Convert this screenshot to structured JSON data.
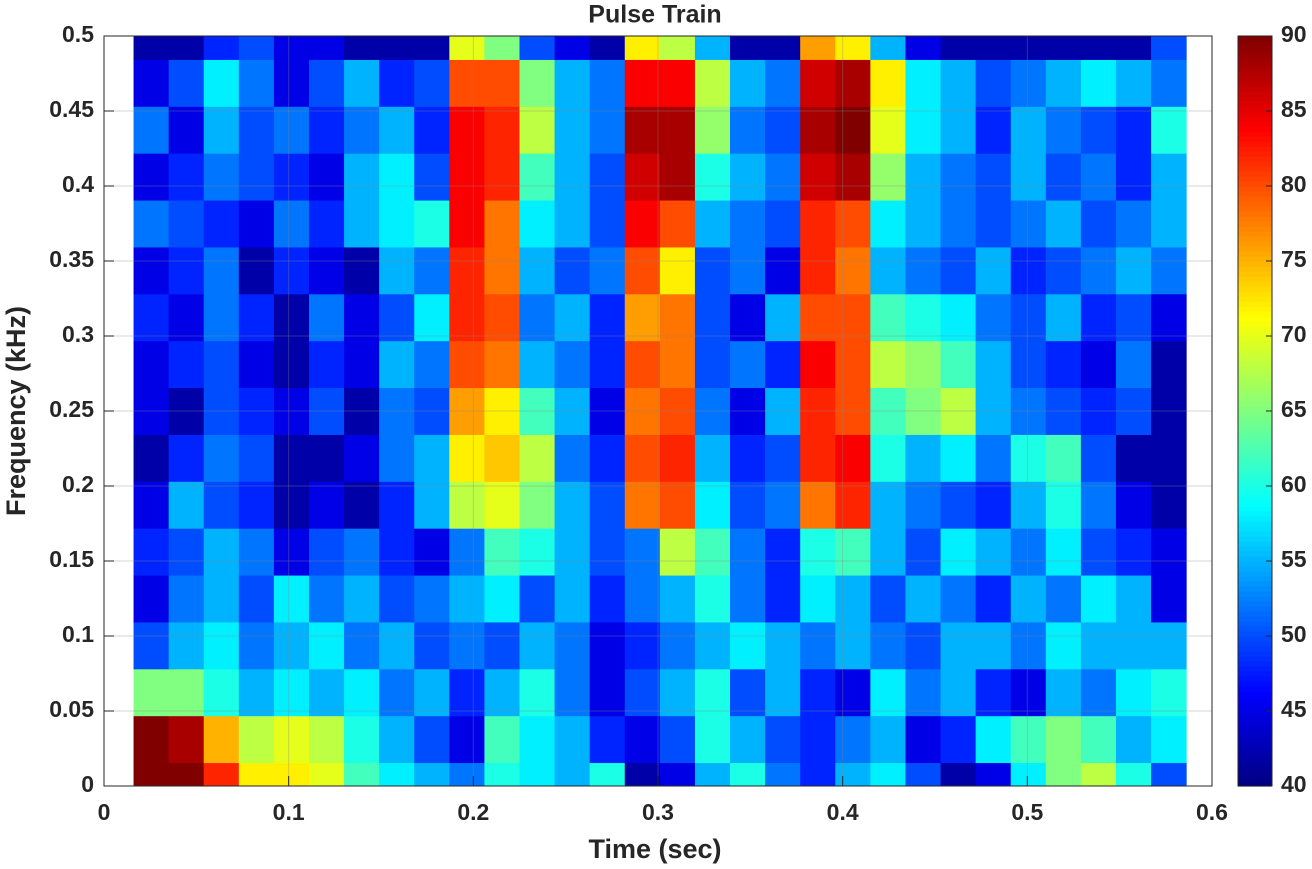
{
  "chart_data": {
    "type": "heatmap",
    "title": "Pulse Train",
    "x_label": "Time (sec)",
    "y_label": "Frequency (kHz)",
    "colormap": "jet",
    "clim": [
      40,
      90
    ],
    "cticks": [
      40,
      45,
      50,
      55,
      60,
      65,
      70,
      75,
      80,
      85,
      90
    ],
    "xlim": [
      0,
      0.6
    ],
    "xticks": [
      0,
      0.1,
      0.2,
      0.3,
      0.4,
      0.5,
      0.6
    ],
    "ylim": [
      0,
      0.5
    ],
    "yticks": [
      0,
      0.05,
      0.1,
      0.15,
      0.2,
      0.25,
      0.3,
      0.35,
      0.4,
      0.45,
      0.5
    ],
    "grid": true,
    "x": [
      0.0255,
      0.0445,
      0.0635,
      0.0825,
      0.1015,
      0.1205,
      0.1395,
      0.1585,
      0.1775,
      0.1965,
      0.2155,
      0.2345,
      0.2535,
      0.2725,
      0.2915,
      0.3105,
      0.3295,
      0.3485,
      0.3675,
      0.3865,
      0.4055,
      0.4245,
      0.4435,
      0.4625,
      0.4815,
      0.5005,
      0.5195,
      0.5385,
      0.5575,
      0.5765
    ],
    "y": [
      0,
      0.03125,
      0.0625,
      0.09375,
      0.125,
      0.15625,
      0.1875,
      0.21875,
      0.25,
      0.28125,
      0.3125,
      0.34375,
      0.375,
      0.40625,
      0.4375,
      0.46875,
      0.5
    ],
    "z": [
      [
        90,
        90,
        82,
        72,
        72,
        70,
        62,
        58,
        55,
        52,
        60,
        58,
        55,
        60,
        42,
        45,
        55,
        60,
        52,
        48,
        55,
        58,
        50,
        42,
        45,
        58,
        65,
        68,
        60,
        50
      ],
      [
        90,
        88,
        75,
        68,
        70,
        68,
        60,
        55,
        50,
        45,
        62,
        58,
        55,
        48,
        45,
        50,
        60,
        55,
        50,
        48,
        52,
        55,
        45,
        48,
        58,
        62,
        65,
        62,
        55,
        58
      ],
      [
        65,
        65,
        60,
        55,
        58,
        55,
        58,
        52,
        55,
        48,
        55,
        60,
        52,
        45,
        50,
        55,
        60,
        50,
        55,
        48,
        45,
        58,
        52,
        55,
        48,
        45,
        55,
        52,
        58,
        60
      ],
      [
        50,
        55,
        58,
        52,
        55,
        58,
        52,
        55,
        50,
        52,
        50,
        55,
        52,
        45,
        48,
        52,
        55,
        58,
        55,
        52,
        55,
        52,
        50,
        55,
        55,
        52,
        58,
        55,
        55,
        55
      ],
      [
        45,
        52,
        55,
        50,
        58,
        52,
        55,
        50,
        52,
        55,
        58,
        50,
        55,
        48,
        52,
        55,
        60,
        52,
        48,
        58,
        55,
        50,
        55,
        52,
        48,
        55,
        52,
        58,
        55,
        45
      ],
      [
        48,
        50,
        55,
        52,
        45,
        50,
        52,
        48,
        45,
        52,
        62,
        60,
        55,
        50,
        52,
        68,
        62,
        52,
        48,
        60,
        62,
        55,
        50,
        58,
        55,
        52,
        58,
        50,
        48,
        45
      ],
      [
        45,
        55,
        50,
        48,
        42,
        45,
        42,
        48,
        55,
        68,
        70,
        65,
        55,
        50,
        78,
        80,
        58,
        50,
        52,
        78,
        82,
        55,
        52,
        50,
        48,
        55,
        60,
        52,
        45,
        42
      ],
      [
        42,
        48,
        52,
        50,
        42,
        42,
        45,
        52,
        55,
        72,
        74,
        68,
        52,
        48,
        80,
        82,
        55,
        48,
        50,
        82,
        84,
        60,
        55,
        58,
        52,
        60,
        62,
        50,
        42,
        42
      ],
      [
        45,
        42,
        50,
        48,
        45,
        50,
        42,
        52,
        50,
        76,
        72,
        62,
        55,
        45,
        78,
        80,
        52,
        45,
        55,
        82,
        80,
        62,
        65,
        68,
        55,
        52,
        50,
        48,
        50,
        42
      ],
      [
        45,
        48,
        50,
        45,
        42,
        48,
        45,
        55,
        52,
        80,
        78,
        55,
        52,
        48,
        80,
        78,
        50,
        52,
        48,
        84,
        80,
        68,
        66,
        62,
        55,
        50,
        48,
        45,
        52,
        42
      ],
      [
        48,
        45,
        52,
        48,
        42,
        52,
        45,
        50,
        58,
        82,
        80,
        52,
        55,
        48,
        76,
        78,
        50,
        45,
        55,
        80,
        80,
        62,
        60,
        58,
        52,
        50,
        55,
        48,
        50,
        45
      ],
      [
        45,
        48,
        52,
        42,
        48,
        45,
        42,
        55,
        52,
        82,
        78,
        55,
        50,
        52,
        80,
        72,
        50,
        52,
        45,
        82,
        78,
        55,
        52,
        50,
        55,
        48,
        50,
        52,
        55,
        52
      ],
      [
        52,
        50,
        48,
        45,
        52,
        48,
        55,
        58,
        60,
        84,
        78,
        58,
        55,
        50,
        84,
        80,
        55,
        52,
        50,
        82,
        80,
        58,
        55,
        52,
        50,
        52,
        55,
        50,
        52,
        55
      ],
      [
        45,
        48,
        52,
        50,
        48,
        45,
        55,
        58,
        50,
        84,
        82,
        62,
        55,
        50,
        86,
        88,
        60,
        55,
        52,
        86,
        88,
        66,
        55,
        52,
        50,
        55,
        50,
        52,
        48,
        55
      ],
      [
        52,
        45,
        55,
        50,
        52,
        48,
        52,
        55,
        48,
        84,
        82,
        68,
        55,
        52,
        88,
        88,
        66,
        52,
        50,
        88,
        90,
        70,
        58,
        55,
        48,
        55,
        52,
        50,
        48,
        60
      ],
      [
        45,
        50,
        58,
        52,
        45,
        50,
        55,
        48,
        50,
        80,
        80,
        65,
        55,
        52,
        84,
        84,
        68,
        55,
        52,
        86,
        88,
        72,
        58,
        55,
        50,
        52,
        55,
        58,
        55,
        52
      ],
      [
        42,
        42,
        48,
        50,
        45,
        45,
        42,
        42,
        42,
        70,
        65,
        50,
        45,
        42,
        72,
        68,
        55,
        42,
        42,
        76,
        72,
        55,
        45,
        42,
        42,
        42,
        42,
        42,
        42,
        50
      ]
    ]
  }
}
